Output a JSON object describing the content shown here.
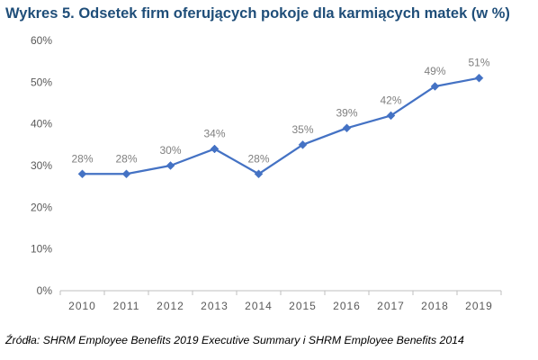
{
  "title": "Wykres 5. Odsetek firm oferujących pokoje dla karmiących matek (w %)",
  "source": "Źródła: SHRM Employee Benefits 2019 Executive Summary i SHRM Employee Benefits 2014",
  "chart_data": {
    "type": "line",
    "title": "Wykres 5. Odsetek firm oferujących pokoje dla karmiących matek (w %)",
    "xlabel": "",
    "ylabel": "",
    "categories": [
      "2010",
      "2011",
      "2012",
      "2013",
      "2014",
      "2015",
      "2016",
      "2017",
      "2018",
      "2019"
    ],
    "series": [
      {
        "values": [
          28,
          28,
          30,
          34,
          28,
          35,
          39,
          42,
          49,
          51
        ],
        "labels": [
          "28%",
          "28%",
          "30%",
          "34%",
          "28%",
          "35%",
          "39%",
          "42%",
          "49%",
          "51%"
        ]
      }
    ],
    "ylim": [
      0,
      60
    ],
    "yticks": [
      0,
      10,
      20,
      30,
      40,
      50,
      60
    ],
    "ytick_labels": [
      "0%",
      "10%",
      "20%",
      "30%",
      "40%",
      "50%",
      "60%"
    ],
    "grid": false,
    "legend": "none",
    "colors": {
      "line": "#4472c4",
      "marker": "#4472c4",
      "axis": "#bfbfbf",
      "title": "#1f4e79",
      "tick_text": "#595959",
      "data_label_text": "#7f7f7f"
    }
  }
}
